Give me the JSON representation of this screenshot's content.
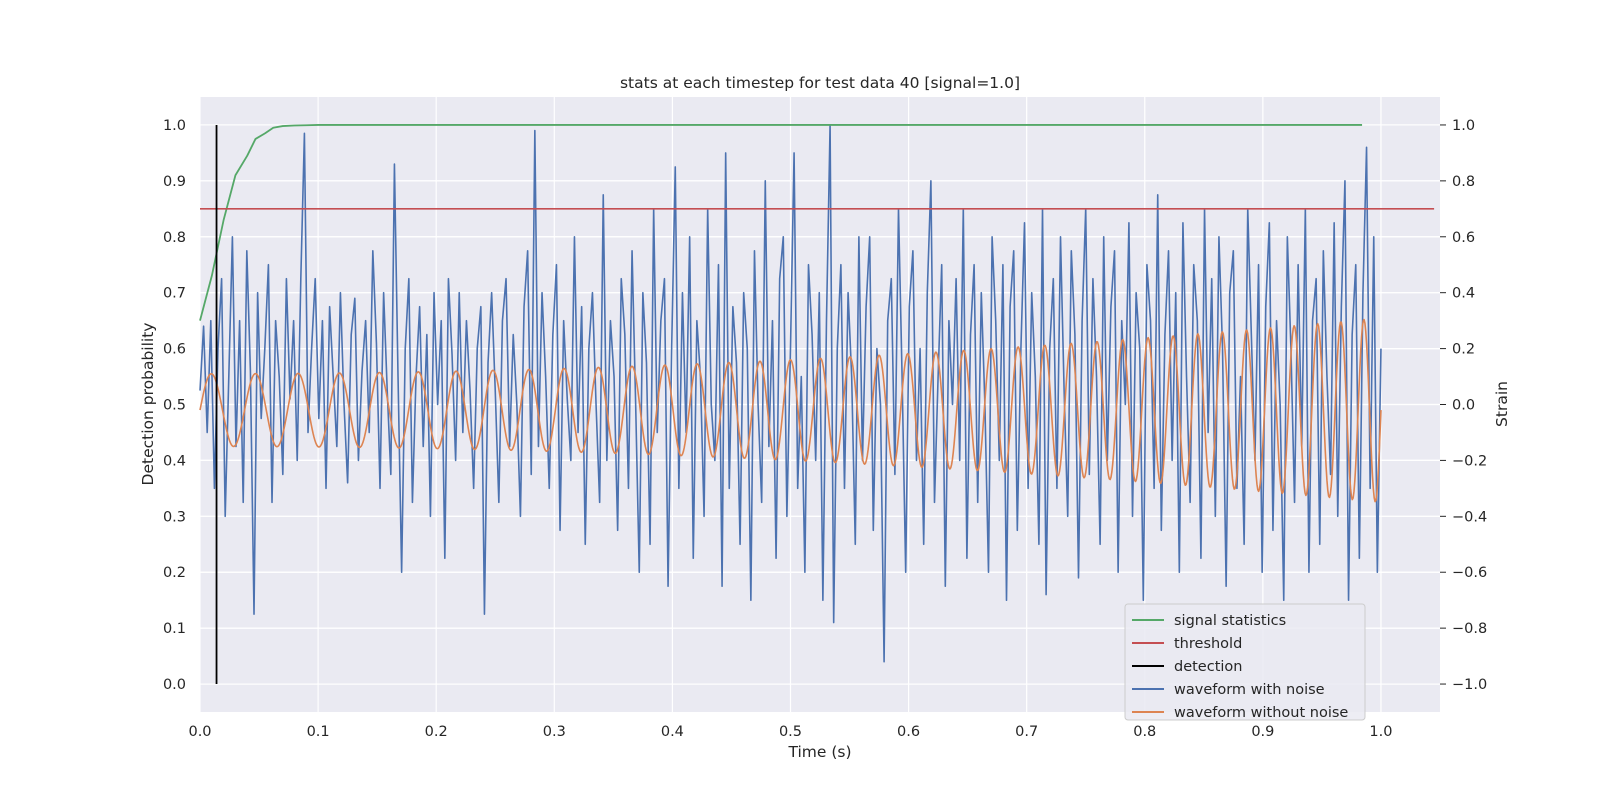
{
  "chart_data": {
    "type": "line",
    "title": "stats at each timestep for test data 40 [signal=1.0]",
    "xlabel": "Time (s)",
    "ylabel": "Detection probability",
    "y2label": "Strain",
    "xlim": [
      0.0,
      1.05
    ],
    "ylim": [
      -0.05,
      1.05
    ],
    "y2lim": [
      -1.1,
      1.1
    ],
    "xticks": [
      "0.0",
      "0.1",
      "0.2",
      "0.3",
      "0.4",
      "0.5",
      "0.6",
      "0.7",
      "0.8",
      "0.9",
      "1.0"
    ],
    "yticks": [
      "0.0",
      "0.1",
      "0.2",
      "0.3",
      "0.4",
      "0.5",
      "0.6",
      "0.7",
      "0.8",
      "0.9",
      "1.0"
    ],
    "y2ticks": [
      "−1.0",
      "−0.8",
      "−0.6",
      "−0.4",
      "−0.2",
      "0.0",
      "0.2",
      "0.4",
      "0.6",
      "0.8",
      "1.0"
    ],
    "grid": true,
    "legend_position": "lower-right",
    "colors": {
      "signal_statistics": "#55a868",
      "threshold": "#c44e52",
      "detection": "#000000",
      "waveform_with_noise": "#4c72b0",
      "waveform_without_noise": "#dd8452",
      "plot_background": "#eaeaf2",
      "grid": "#ffffff"
    },
    "series": [
      {
        "name": "signal statistics",
        "axis": "left",
        "x": [
          0.0,
          0.005,
          0.01,
          0.015,
          0.02,
          0.025,
          0.03,
          0.04,
          0.047,
          0.055,
          0.062,
          0.07,
          0.08,
          0.09,
          0.1,
          0.2,
          0.5,
          0.8,
          0.984
        ],
        "y": [
          0.65,
          0.69,
          0.73,
          0.78,
          0.83,
          0.87,
          0.91,
          0.945,
          0.975,
          0.985,
          0.995,
          0.998,
          0.999,
          0.9995,
          1.0,
          1.0,
          1.0,
          1.0,
          1.0
        ]
      },
      {
        "name": "threshold",
        "axis": "left",
        "x": [
          0.0,
          1.045
        ],
        "y": [
          0.85,
          0.85
        ]
      },
      {
        "name": "detection",
        "axis": "left",
        "x": [
          0.014,
          0.014
        ],
        "y": [
          0.0,
          1.0
        ]
      },
      {
        "name": "waveform with noise",
        "axis": "right",
        "x_range": [
          0.0,
          1.0
        ],
        "values": [
          0.05,
          0.28,
          -0.1,
          0.3,
          -0.3,
          0.2,
          0.45,
          -0.4,
          0.1,
          0.6,
          -0.15,
          0.3,
          -0.35,
          0.55,
          0.12,
          -0.75,
          0.4,
          -0.05,
          0.2,
          0.5,
          -0.35,
          0.3,
          0.1,
          -0.25,
          0.45,
          0.02,
          0.3,
          -0.2,
          0.45,
          0.97,
          -0.1,
          0.2,
          0.45,
          -0.05,
          0.3,
          -0.3,
          0.35,
          0.1,
          -0.15,
          0.4,
          0.0,
          -0.28,
          0.25,
          0.38,
          -0.2,
          0.12,
          0.3,
          -0.1,
          0.55,
          0.22,
          -0.3,
          0.4,
          0.05,
          -0.25,
          0.86,
          0.1,
          -0.6,
          0.2,
          0.45,
          -0.35,
          0.1,
          0.35,
          -0.15,
          0.25,
          -0.4,
          0.4,
          0.0,
          0.3,
          -0.55,
          0.45,
          0.18,
          -0.2,
          0.4,
          -0.1,
          0.3,
          0.05,
          -0.3,
          0.2,
          0.35,
          -0.75,
          0.15,
          0.4,
          0.05,
          -0.35,
          0.3,
          0.45,
          -0.15,
          0.25,
          0.0,
          -0.4,
          0.35,
          0.55,
          -0.25,
          0.98,
          -0.15,
          0.4,
          0.1,
          -0.3,
          0.25,
          0.5,
          -0.45,
          0.3,
          0.02,
          -0.2,
          0.6,
          -0.1,
          0.35,
          -0.5,
          0.2,
          0.4,
          0.0,
          -0.35,
          0.75,
          -0.2,
          0.3,
          0.1,
          -0.45,
          0.45,
          0.25,
          -0.3,
          0.55,
          0.0,
          -0.6,
          0.4,
          0.15,
          -0.5,
          0.7,
          -0.1,
          0.3,
          0.45,
          -0.65,
          0.2,
          0.85,
          -0.3,
          0.4,
          -0.1,
          0.6,
          -0.55,
          0.3,
          0.1,
          -0.4,
          0.7,
          0.0,
          -0.2,
          0.5,
          -0.65,
          0.9,
          -0.3,
          0.35,
          0.15,
          -0.5,
          0.4,
          0.2,
          -0.7,
          0.55,
          0.0,
          -0.35,
          0.8,
          -0.15,
          0.3,
          -0.55,
          0.45,
          0.6,
          -0.4,
          0.2,
          0.9,
          -0.3,
          0.1,
          -0.6,
          0.5,
          0.25,
          -0.2,
          0.4,
          -0.7,
          0.3,
          1.0,
          -0.78,
          0.2,
          0.5,
          -0.3,
          0.4,
          0.1,
          -0.5,
          0.6,
          -0.2,
          0.35,
          0.6,
          -0.45,
          0.2,
          0.0,
          -0.92,
          0.3,
          0.45,
          -0.25,
          0.7,
          0.1,
          -0.6,
          0.35,
          0.55,
          -0.2,
          0.2,
          -0.5,
          0.4,
          0.8,
          -0.35,
          0.1,
          0.5,
          -0.65,
          0.3,
          0.0,
          0.45,
          -0.2,
          0.7,
          -0.55,
          0.25,
          0.5,
          -0.35,
          0.4,
          0.0,
          -0.6,
          0.6,
          0.3,
          -0.2,
          0.5,
          -0.7,
          0.35,
          0.55,
          -0.45,
          0.2,
          0.65,
          -0.3,
          0.4,
          0.1,
          -0.5,
          0.7,
          -0.68,
          0.2,
          0.45,
          -0.3,
          0.6,
          0.05,
          -0.4,
          0.55,
          0.25,
          -0.62,
          0.3,
          0.7,
          -0.25,
          0.45,
          0.1,
          -0.5,
          0.6,
          -0.2,
          0.35,
          0.55,
          -0.6,
          0.3,
          0.0,
          0.65,
          -0.4,
          0.4,
          0.2,
          -0.7,
          0.5,
          0.3,
          -0.3,
          0.75,
          -0.45,
          0.25,
          0.55,
          -0.2,
          0.4,
          -0.6,
          0.65,
          0.1,
          -0.35,
          0.5,
          0.3,
          -0.55,
          0.7,
          -0.1,
          0.45,
          -0.4,
          0.6,
          0.2,
          -0.65,
          0.4,
          0.55,
          -0.3,
          0.1,
          -0.5,
          0.7,
          0.25,
          -0.2,
          0.5,
          -0.6,
          0.35,
          0.65,
          -0.45,
          0.3,
          0.0,
          -0.7,
          0.6,
          0.2,
          -0.35,
          0.5,
          -0.15,
          0.7,
          -0.6,
          0.3,
          0.45,
          -0.5,
          0.55,
          0.1,
          -0.25,
          0.65,
          -0.4,
          0.35,
          0.8,
          -0.7,
          0.25,
          0.5,
          -0.55,
          0.4,
          0.92,
          -0.3,
          0.6,
          -0.6,
          0.2
        ]
      },
      {
        "name": "waveform without noise",
        "axis": "right",
        "x_range": [
          0.0,
          1.0
        ],
        "chirp": {
          "start_frequency_hz": 26,
          "frequency_increase_hz": 26,
          "start_amplitude": 0.13,
          "end_amplitude": 0.33,
          "center": -0.02
        }
      }
    ],
    "legend": [
      "signal statistics",
      "threshold",
      "detection",
      "waveform with noise",
      "waveform without noise"
    ]
  }
}
